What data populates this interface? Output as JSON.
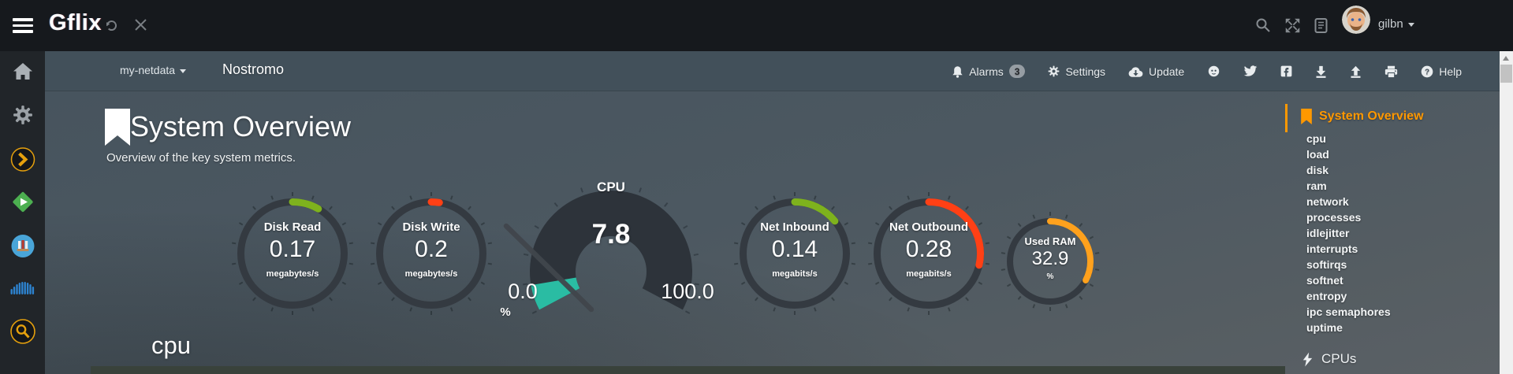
{
  "topbar": {
    "brand": "Gflix",
    "user": "gilbn",
    "icons": [
      "menu",
      "refresh",
      "close",
      "search",
      "fullscreen",
      "changelog",
      "avatar",
      "caret-down"
    ]
  },
  "navbar": {
    "host_menu": "my-netdata",
    "hostname": "Nostromo",
    "alarms_label": "Alarms",
    "alarms_count": "3",
    "settings_label": "Settings",
    "update_label": "Update",
    "help_label": "Help",
    "icons": [
      "bell",
      "gear",
      "cloud-download",
      "github",
      "twitter",
      "facebook",
      "download",
      "upload",
      "printer",
      "question-circle"
    ]
  },
  "sidebar": {
    "icons": [
      "home",
      "settings-gear",
      "plex",
      "emby",
      "library-books",
      "soundcloud-wave",
      "search-magnifier"
    ]
  },
  "main": {
    "title": "System Overview",
    "subtitle": "Overview of the key system metrics.",
    "section_heading": "cpu"
  },
  "chart_data": {
    "type": "gauge-dashboard",
    "ring_color": "#343a41",
    "gauges": [
      {
        "title": "Disk Read",
        "value": "0.17",
        "units": "megabytes/s",
        "arc_color": "#7eb21d",
        "sweep_deg": 30
      },
      {
        "title": "Disk Write",
        "value": "0.2",
        "units": "megabytes/s",
        "arc_color": "#ff4015",
        "sweep_deg": 9
      },
      {
        "title": "Net Inbound",
        "value": "0.14",
        "units": "megabits/s",
        "arc_color": "#7eb21d",
        "sweep_deg": 51
      },
      {
        "title": "Net Outbound",
        "value": "0.28",
        "units": "megabits/s",
        "arc_color": "#ff4015",
        "sweep_deg": 103
      },
      {
        "title": "Used RAM",
        "value": "32.9",
        "units": "%",
        "arc_color": "#ffa11d",
        "sweep_deg": 118
      }
    ],
    "cpu_gauge": {
      "title": "CPU",
      "value": "7.8",
      "min": "0.0",
      "max": "100.0",
      "units": "%",
      "value_num": 7.8,
      "min_num": 0,
      "max_num": 100,
      "dial_color": "#2d333a",
      "fill_color": "#2abca3",
      "needle_color": "#41464c"
    }
  },
  "toc": {
    "active": "System Overview",
    "items": [
      "cpu",
      "load",
      "disk",
      "ram",
      "network",
      "processes",
      "idlejitter",
      "interrupts",
      "softirqs",
      "softnet",
      "entropy",
      "ipc semaphores",
      "uptime"
    ],
    "cpus_label": "CPUs",
    "accent_color": "#ff9800"
  }
}
